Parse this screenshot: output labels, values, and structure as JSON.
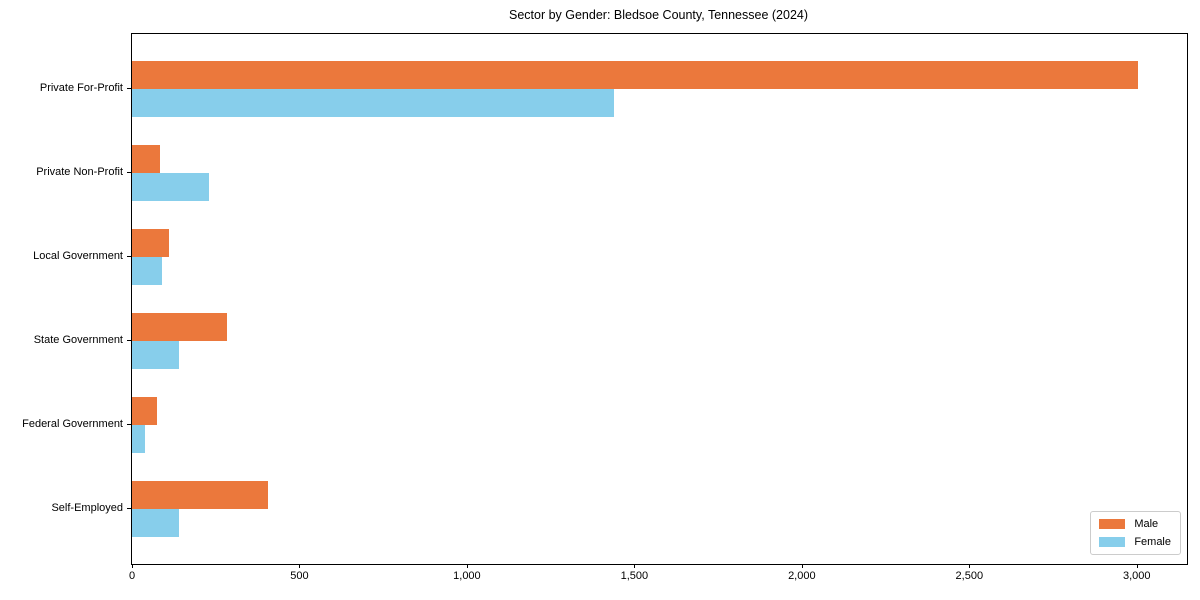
{
  "title": "Sector by Gender: Bledsoe County, Tennessee (2024)",
  "chart_data": {
    "type": "bar",
    "orientation": "horizontal",
    "title": "Sector by Gender: Bledsoe County, Tennessee (2024)",
    "categories": [
      "Private For-Profit",
      "Private Non-Profit",
      "Local Government",
      "State Government",
      "Federal Government",
      "Self-Employed"
    ],
    "series": [
      {
        "name": "Male",
        "color": "#EB783C",
        "values": [
          3005,
          85,
          110,
          285,
          75,
          405
        ]
      },
      {
        "name": "Female",
        "color": "#87CEEB",
        "values": [
          1440,
          230,
          90,
          140,
          40,
          140
        ]
      }
    ],
    "xlabel": "",
    "ylabel": "",
    "xlim": [
      0,
      3150
    ],
    "xticks": [
      0,
      500,
      1000,
      1500,
      2000,
      2500,
      3000
    ],
    "xtick_labels": [
      "0",
      "500",
      "1,000",
      "1,500",
      "2,000",
      "2,500",
      "3,000"
    ],
    "grid": false,
    "legend": {
      "position": "lower right",
      "entries": [
        "Male",
        "Female"
      ]
    }
  }
}
